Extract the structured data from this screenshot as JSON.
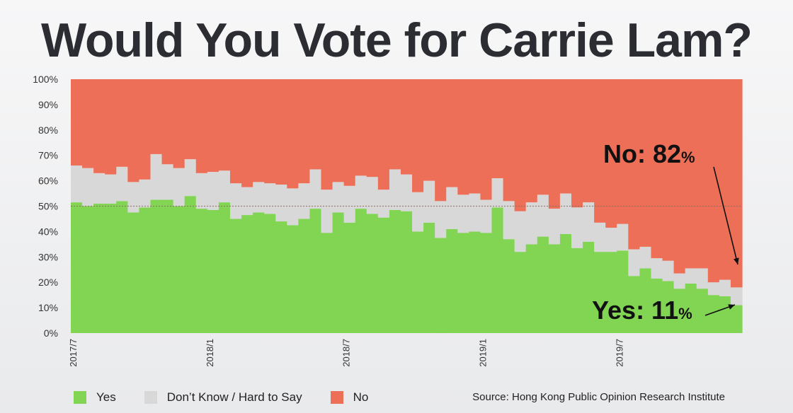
{
  "title": "Would You Vote for Carrie Lam?",
  "source": "Source: Hong Kong Public Opinion Research Institute",
  "legend": {
    "yes": "Yes",
    "dk": "Don’t Know / Hard to Say",
    "no": "No"
  },
  "annotations": {
    "no_label": "No: 82",
    "no_pct": "%",
    "yes_label": "Yes: 11",
    "yes_pct": "%"
  },
  "colors": {
    "yes": "#82d552",
    "dk": "#d8d8d8",
    "no": "#ee6f58"
  },
  "chart_data": {
    "type": "area",
    "stacked": true,
    "x_tick_labels": [
      "2017/7",
      "2018/1",
      "2018/7",
      "2019/1",
      "2019/7"
    ],
    "y_tick_labels": [
      "0%",
      "10%",
      "20%",
      "30%",
      "40%",
      "50%",
      "60%",
      "70%",
      "80%",
      "90%",
      "100%"
    ],
    "ylim": [
      0,
      100
    ],
    "reference_line": 50,
    "series": [
      {
        "name": "Yes",
        "values": [
          51.5,
          50,
          51,
          51,
          52,
          47.5,
          49.5,
          52.5,
          52.5,
          50,
          54,
          49,
          48.5,
          51.5,
          45,
          46.5,
          47.5,
          47,
          44,
          42.5,
          45,
          49,
          39.5,
          47.5,
          43.5,
          49,
          47,
          45.5,
          48.5,
          48,
          40,
          43.5,
          37.5,
          41,
          39.5,
          40,
          39.5,
          49.5,
          37,
          32,
          35,
          38,
          35,
          39,
          33.5,
          36,
          32,
          32,
          32.5,
          22.5,
          25.5,
          21.5,
          20.5,
          17.5,
          19.5,
          17.5,
          15,
          14.5,
          11
        ]
      },
      {
        "name": "Don’t Know / Hard to Say",
        "values": [
          14.5,
          15,
          12,
          11.5,
          13.5,
          12,
          11,
          18,
          14,
          15,
          14.5,
          14,
          15,
          12.5,
          14,
          11,
          12,
          12,
          14.5,
          14.5,
          14,
          15.5,
          17,
          12,
          14.5,
          13,
          14.5,
          11,
          16,
          14.5,
          15.5,
          16.5,
          14.5,
          16.5,
          15,
          15,
          13,
          11.5,
          15,
          16,
          16.5,
          16.5,
          14,
          16,
          16,
          15.5,
          11.5,
          9.5,
          10.5,
          10.5,
          8.5,
          8,
          8,
          6,
          6,
          8,
          5,
          6.5,
          7
        ]
      },
      {
        "name": "No",
        "values": [
          34,
          35,
          37,
          37.5,
          34.5,
          40.5,
          39.5,
          29.5,
          33.5,
          35,
          31.5,
          37,
          36.5,
          36,
          41,
          42.5,
          40.5,
          41,
          41.5,
          43,
          41,
          35.5,
          43.5,
          40.5,
          42,
          38,
          38.5,
          43.5,
          35.5,
          37.5,
          44.5,
          40,
          48,
          42.5,
          45.5,
          45,
          47.5,
          39,
          48,
          52,
          48.5,
          45.5,
          51,
          45,
          50.5,
          48.5,
          56.5,
          58.5,
          57,
          67,
          66,
          70.5,
          71.5,
          76.5,
          74.5,
          74.5,
          80,
          79,
          82
        ]
      }
    ]
  }
}
